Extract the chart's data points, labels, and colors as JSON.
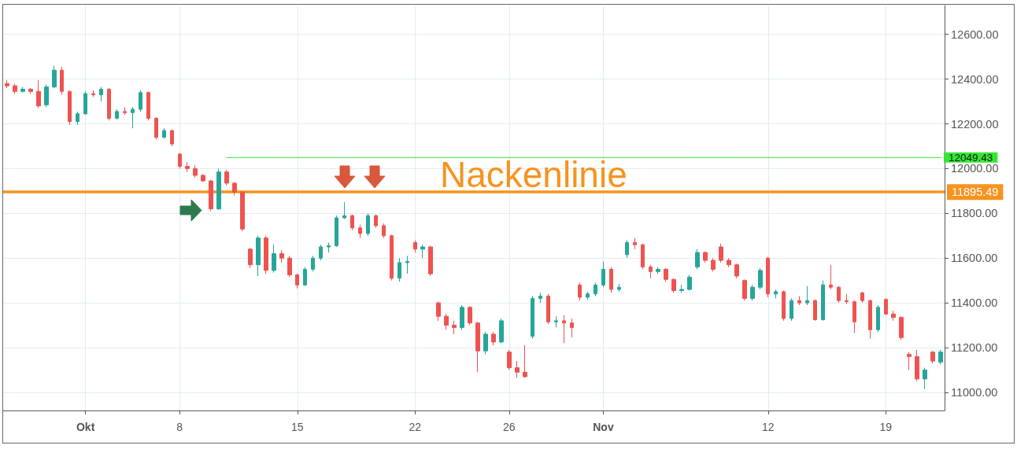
{
  "chart_data": {
    "type": "candlestick",
    "categories": [
      null,
      null,
      null,
      null,
      null,
      null,
      null,
      null,
      null,
      null,
      "Okt",
      null,
      null,
      null,
      null,
      null,
      null,
      null,
      null,
      null,
      null,
      null,
      "8",
      null,
      null,
      null,
      null,
      null,
      null,
      null,
      null,
      null,
      null,
      null,
      null,
      null,
      null,
      "15",
      null,
      null,
      null,
      null,
      null,
      null,
      null,
      null,
      null,
      null,
      null,
      null,
      null,
      null,
      "22",
      null,
      null,
      null,
      null,
      null,
      null,
      null,
      null,
      null,
      null,
      null,
      "26",
      null,
      null,
      null,
      null,
      null,
      null,
      null,
      null,
      null,
      null,
      null,
      "Nov",
      null,
      null,
      null,
      null,
      null,
      null,
      null,
      null,
      null,
      null,
      null,
      null,
      null,
      null,
      null,
      null,
      null,
      null,
      null,
      null,
      "12",
      null,
      null,
      null,
      null,
      null,
      null,
      null,
      null,
      null,
      null,
      null,
      null,
      null,
      null,
      "19",
      null,
      null,
      null,
      null,
      null,
      null,
      null
    ],
    "series": [
      {
        "ohlc": [
          [
            12380,
            12395,
            12360,
            12370
          ],
          [
            12370,
            12380,
            12335,
            12345
          ],
          [
            12345,
            12365,
            12340,
            12355
          ],
          [
            12355,
            12360,
            12335,
            12345
          ],
          [
            12345,
            12395,
            12270,
            12280
          ],
          [
            12285,
            12375,
            12275,
            12365
          ],
          [
            12365,
            12460,
            12360,
            12440
          ],
          [
            12440,
            12455,
            12330,
            12345
          ],
          [
            12345,
            12350,
            12195,
            12210
          ],
          [
            12210,
            12255,
            12195,
            12245
          ],
          [
            12245,
            12345,
            12240,
            12335
          ],
          [
            12335,
            12350,
            12320,
            12330
          ],
          [
            12330,
            12365,
            12300,
            12355
          ],
          [
            12355,
            12360,
            12215,
            12225
          ],
          [
            12225,
            12265,
            12220,
            12255
          ],
          [
            12255,
            12275,
            12240,
            12250
          ],
          [
            12250,
            12275,
            12180,
            12265
          ],
          [
            12265,
            12350,
            12255,
            12340
          ],
          [
            12340,
            12345,
            12215,
            12225
          ],
          [
            12225,
            12230,
            12130,
            12140
          ],
          [
            12140,
            12180,
            12135,
            12170
          ],
          [
            12170,
            12175,
            12100,
            12110
          ],
          [
            12065,
            12070,
            12000,
            12010
          ],
          [
            12010,
            12030,
            11985,
            12000
          ],
          [
            12000,
            12015,
            11960,
            11970
          ],
          [
            11970,
            11975,
            11940,
            11945
          ],
          [
            11945,
            11950,
            11810,
            11820
          ],
          [
            11820,
            12000,
            11815,
            11985
          ],
          [
            11985,
            11995,
            11925,
            11935
          ],
          [
            11935,
            11940,
            11880,
            11895
          ],
          [
            11895,
            11900,
            11720,
            11730
          ],
          [
            11640,
            11645,
            11555,
            11570
          ],
          [
            11570,
            11700,
            11520,
            11690
          ],
          [
            11690,
            11700,
            11530,
            11545
          ],
          [
            11545,
            11660,
            11535,
            11620
          ],
          [
            11620,
            11635,
            11580,
            11600
          ],
          [
            11600,
            11610,
            11515,
            11525
          ],
          [
            11525,
            11530,
            11465,
            11480
          ],
          [
            11480,
            11560,
            11475,
            11550
          ],
          [
            11550,
            11610,
            11540,
            11600
          ],
          [
            11600,
            11660,
            11590,
            11650
          ],
          [
            11650,
            11670,
            11625,
            11655
          ],
          [
            11655,
            11790,
            11650,
            11780
          ],
          [
            11780,
            11850,
            11775,
            11790
          ],
          [
            11790,
            11795,
            11725,
            11735
          ],
          [
            11735,
            11750,
            11690,
            11710
          ],
          [
            11710,
            11800,
            11700,
            11790
          ],
          [
            11790,
            11795,
            11735,
            11745
          ],
          [
            11745,
            11755,
            11690,
            11700
          ],
          [
            11700,
            11705,
            11500,
            11510
          ],
          [
            11510,
            11600,
            11495,
            11580
          ],
          [
            11580,
            11610,
            11530,
            11585
          ],
          [
            11670,
            11680,
            11625,
            11640
          ],
          [
            11640,
            11660,
            11600,
            11650
          ],
          [
            11650,
            11655,
            11520,
            11530
          ],
          [
            11400,
            11405,
            11320,
            11340
          ],
          [
            11340,
            11350,
            11280,
            11300
          ],
          [
            11300,
            11320,
            11260,
            11290
          ],
          [
            11290,
            11390,
            11280,
            11380
          ],
          [
            11380,
            11385,
            11300,
            11310
          ],
          [
            11310,
            11315,
            11090,
            11185
          ],
          [
            11185,
            11270,
            11170,
            11260
          ],
          [
            11260,
            11270,
            11210,
            11225
          ],
          [
            11225,
            11330,
            11220,
            11320
          ],
          [
            11180,
            11190,
            11100,
            11110
          ],
          [
            11110,
            11140,
            11065,
            11090
          ],
          [
            11090,
            11210,
            11065,
            11070
          ],
          [
            11250,
            11430,
            11240,
            11420
          ],
          [
            11420,
            11445,
            11400,
            11430
          ],
          [
            11430,
            11440,
            11305,
            11315
          ],
          [
            11315,
            11340,
            11290,
            11320
          ],
          [
            11320,
            11345,
            11220,
            11310
          ],
          [
            11310,
            11330,
            11245,
            11290
          ],
          [
            11480,
            11490,
            11410,
            11425
          ],
          [
            11425,
            11450,
            11415,
            11440
          ],
          [
            11440,
            11490,
            11430,
            11480
          ],
          [
            11480,
            11585,
            11470,
            11550
          ],
          [
            11550,
            11560,
            11445,
            11460
          ],
          [
            11460,
            11485,
            11450,
            11470
          ],
          [
            11615,
            11680,
            11600,
            11670
          ],
          [
            11670,
            11690,
            11640,
            11660
          ],
          [
            11660,
            11665,
            11550,
            11560
          ],
          [
            11560,
            11570,
            11510,
            11540
          ],
          [
            11540,
            11560,
            11530,
            11550
          ],
          [
            11550,
            11555,
            11495,
            11505
          ],
          [
            11505,
            11510,
            11445,
            11455
          ],
          [
            11455,
            11480,
            11445,
            11460
          ],
          [
            11460,
            11525,
            11455,
            11515
          ],
          [
            11560,
            11640,
            11550,
            11625
          ],
          [
            11625,
            11630,
            11580,
            11590
          ],
          [
            11590,
            11600,
            11540,
            11550
          ],
          [
            11650,
            11665,
            11580,
            11590
          ],
          [
            11590,
            11600,
            11560,
            11570
          ],
          [
            11570,
            11575,
            11510,
            11520
          ],
          [
            11500,
            11505,
            11410,
            11420
          ],
          [
            11420,
            11480,
            11410,
            11470
          ],
          [
            11470,
            11555,
            11460,
            11545
          ],
          [
            11600,
            11605,
            11425,
            11440
          ],
          [
            11440,
            11460,
            11420,
            11450
          ],
          [
            11450,
            11455,
            11320,
            11330
          ],
          [
            11330,
            11420,
            11320,
            11410
          ],
          [
            11410,
            11430,
            11390,
            11400
          ],
          [
            11400,
            11475,
            11390,
            11410
          ],
          [
            11410,
            11415,
            11320,
            11325
          ],
          [
            11325,
            11500,
            11320,
            11480
          ],
          [
            11480,
            11570,
            11460,
            11470
          ],
          [
            11470,
            11475,
            11400,
            11410
          ],
          [
            11410,
            11440,
            11395,
            11405
          ],
          [
            11405,
            11410,
            11265,
            11315
          ],
          [
            11445,
            11450,
            11400,
            11410
          ],
          [
            11410,
            11415,
            11240,
            11280
          ],
          [
            11280,
            11390,
            11270,
            11380
          ],
          [
            11415,
            11420,
            11345,
            11350
          ],
          [
            11350,
            11365,
            11320,
            11335
          ],
          [
            11335,
            11340,
            11235,
            11245
          ],
          [
            11170,
            11180,
            11100,
            11160
          ],
          [
            11160,
            11190,
            11050,
            11060
          ],
          [
            11060,
            11110,
            11015,
            11100
          ],
          [
            11180,
            11185,
            11130,
            11140
          ],
          [
            11135,
            11190,
            11125,
            11180
          ]
        ],
        "colors": [
          "#ef5350",
          "#ef5350",
          "#26a69a",
          "#ef5350",
          "#ef5350",
          "#26a69a",
          "#26a69a",
          "#ef5350",
          "#ef5350",
          "#26a69a",
          "#26a69a",
          "#ef5350",
          "#26a69a",
          "#ef5350",
          "#26a69a",
          "#ef5350",
          "#26a69a",
          "#26a69a",
          "#ef5350",
          "#ef5350",
          "#26a69a",
          "#ef5350",
          "#ef5350",
          "#ef5350",
          "#ef5350",
          "#ef5350",
          "#ef5350",
          "#26a69a",
          "#ef5350",
          "#ef5350",
          "#ef5350",
          "#ef5350",
          "#26a69a",
          "#ef5350",
          "#26a69a",
          "#ef5350",
          "#ef5350",
          "#ef5350",
          "#26a69a",
          "#26a69a",
          "#26a69a",
          "#26a69a",
          "#26a69a",
          "#26a69a",
          "#ef5350",
          "#ef5350",
          "#26a69a",
          "#ef5350",
          "#ef5350",
          "#ef5350",
          "#26a69a",
          "#26a69a",
          "#ef5350",
          "#26a69a",
          "#ef5350",
          "#ef5350",
          "#ef5350",
          "#ef5350",
          "#26a69a",
          "#ef5350",
          "#ef5350",
          "#26a69a",
          "#ef5350",
          "#26a69a",
          "#ef5350",
          "#ef5350",
          "#ef5350",
          "#26a69a",
          "#26a69a",
          "#ef5350",
          "#26a69a",
          "#ef5350",
          "#ef5350",
          "#ef5350",
          "#26a69a",
          "#26a69a",
          "#26a69a",
          "#ef5350",
          "#26a69a",
          "#26a69a",
          "#ef5350",
          "#ef5350",
          "#ef5350",
          "#26a69a",
          "#ef5350",
          "#ef5350",
          "#26a69a",
          "#26a69a",
          "#26a69a",
          "#ef5350",
          "#ef5350",
          "#ef5350",
          "#ef5350",
          "#ef5350",
          "#ef5350",
          "#26a69a",
          "#26a69a",
          "#ef5350",
          "#26a69a",
          "#ef5350",
          "#26a69a",
          "#ef5350",
          "#26a69a",
          "#ef5350",
          "#26a69a",
          "#ef5350",
          "#ef5350",
          "#ef5350",
          "#ef5350",
          "#ef5350",
          "#ef5350",
          "#26a69a",
          "#ef5350",
          "#ef5350",
          "#ef5350",
          "#ef5350",
          "#ef5350",
          "#26a69a",
          "#ef5350",
          "#26a69a"
        ]
      },
      {
        "type": "line",
        "color": "#33e633",
        "values": [
          null,
          null,
          null,
          null,
          null,
          null,
          null,
          null,
          null,
          null,
          null,
          null,
          null,
          null,
          null,
          null,
          null,
          null,
          null,
          null,
          null,
          null,
          null,
          null,
          null,
          null,
          null,
          null,
          12049.43,
          12049.43,
          12049.43,
          12049.43,
          12049.43,
          12049.43,
          12049.43,
          12049.43,
          12049.43,
          12049.43,
          12049.43,
          12049.43,
          12049.43,
          12049.43,
          12049.43,
          12049.43,
          12049.43,
          12049.43,
          12049.43,
          12049.43,
          12049.43,
          12049.43,
          12049.43,
          12049.43,
          12049.43,
          12049.43,
          12049.43,
          12049.43,
          12049.43,
          12049.43,
          12049.43,
          12049.43,
          12049.43,
          12049.43,
          12049.43,
          12049.43,
          12049.43,
          12049.43,
          12049.43,
          12049.43,
          12049.43,
          12049.43,
          12049.43,
          12049.43,
          12049.43,
          12049.43,
          12049.43,
          12049.43,
          12049.43,
          12049.43,
          12049.43,
          12049.43,
          12049.43,
          12049.43,
          12049.43,
          12049.43,
          12049.43,
          12049.43,
          12049.43,
          12049.43,
          12049.43,
          12049.43,
          12049.43,
          12049.43,
          12049.43,
          12049.43,
          12049.43,
          12049.43,
          12049.43,
          12049.43,
          12049.43,
          12049.43,
          12049.43,
          12049.43,
          12049.43,
          12049.43,
          12049.43,
          12049.43,
          12049.43,
          12049.43,
          12049.43,
          12049.43,
          12049.43,
          12049.43,
          12049.43,
          12049.43,
          12049.43,
          12049.43,
          12049.43,
          12049.43,
          12049.43,
          12049.43
        ],
        "value_labels": [
          null,
          null,
          null,
          null,
          null,
          null,
          null,
          null,
          null,
          null,
          null,
          null,
          null,
          null,
          null,
          null,
          null,
          null,
          null,
          null,
          null,
          null,
          null,
          null,
          null,
          null,
          null,
          null,
          null,
          null,
          null,
          null,
          null,
          null,
          null,
          null,
          null,
          null,
          null,
          null,
          null,
          null,
          null,
          null,
          null,
          null,
          null,
          null,
          null,
          null,
          null,
          null,
          null,
          null,
          null,
          null,
          null,
          null,
          null,
          null,
          null,
          null,
          null,
          null,
          null,
          null,
          null,
          null,
          null,
          null,
          null,
          null,
          null,
          null,
          null,
          null,
          null,
          null,
          null,
          null,
          null,
          null,
          null,
          null,
          null,
          null,
          null,
          null,
          null,
          null,
          null,
          null,
          null,
          null,
          null,
          null,
          null,
          null,
          null,
          null,
          null,
          null,
          null,
          null,
          null,
          null,
          null,
          null,
          null,
          null,
          null,
          null,
          null,
          null,
          null,
          null,
          null,
          null,
          null,
          "12049.43"
        ]
      }
    ],
    "ylim": [
      10919,
      12729
    ],
    "yticks": [
      {
        "value": 11000,
        "label": "11000.00"
      },
      {
        "value": 11200,
        "label": "11200.00"
      },
      {
        "value": 11400,
        "label": "11400.00"
      },
      {
        "value": 11600,
        "label": "11600.00"
      },
      {
        "value": 11800,
        "label": "11800.00"
      },
      {
        "value": 12000,
        "label": "12000.00"
      },
      {
        "value": 12200,
        "label": "12200.00"
      },
      {
        "value": 12400,
        "label": "12400.00"
      },
      {
        "value": 12600,
        "label": "12600.00"
      }
    ],
    "ref_lines": [
      {
        "axis": "y",
        "value": 11895.49,
        "label": "11895.49",
        "color": "#f7931e"
      }
    ],
    "annotations": [
      {
        "text": "Nackenlinie",
        "x": "26",
        "y": 11895.49
      }
    ],
    "grid": true
  }
}
